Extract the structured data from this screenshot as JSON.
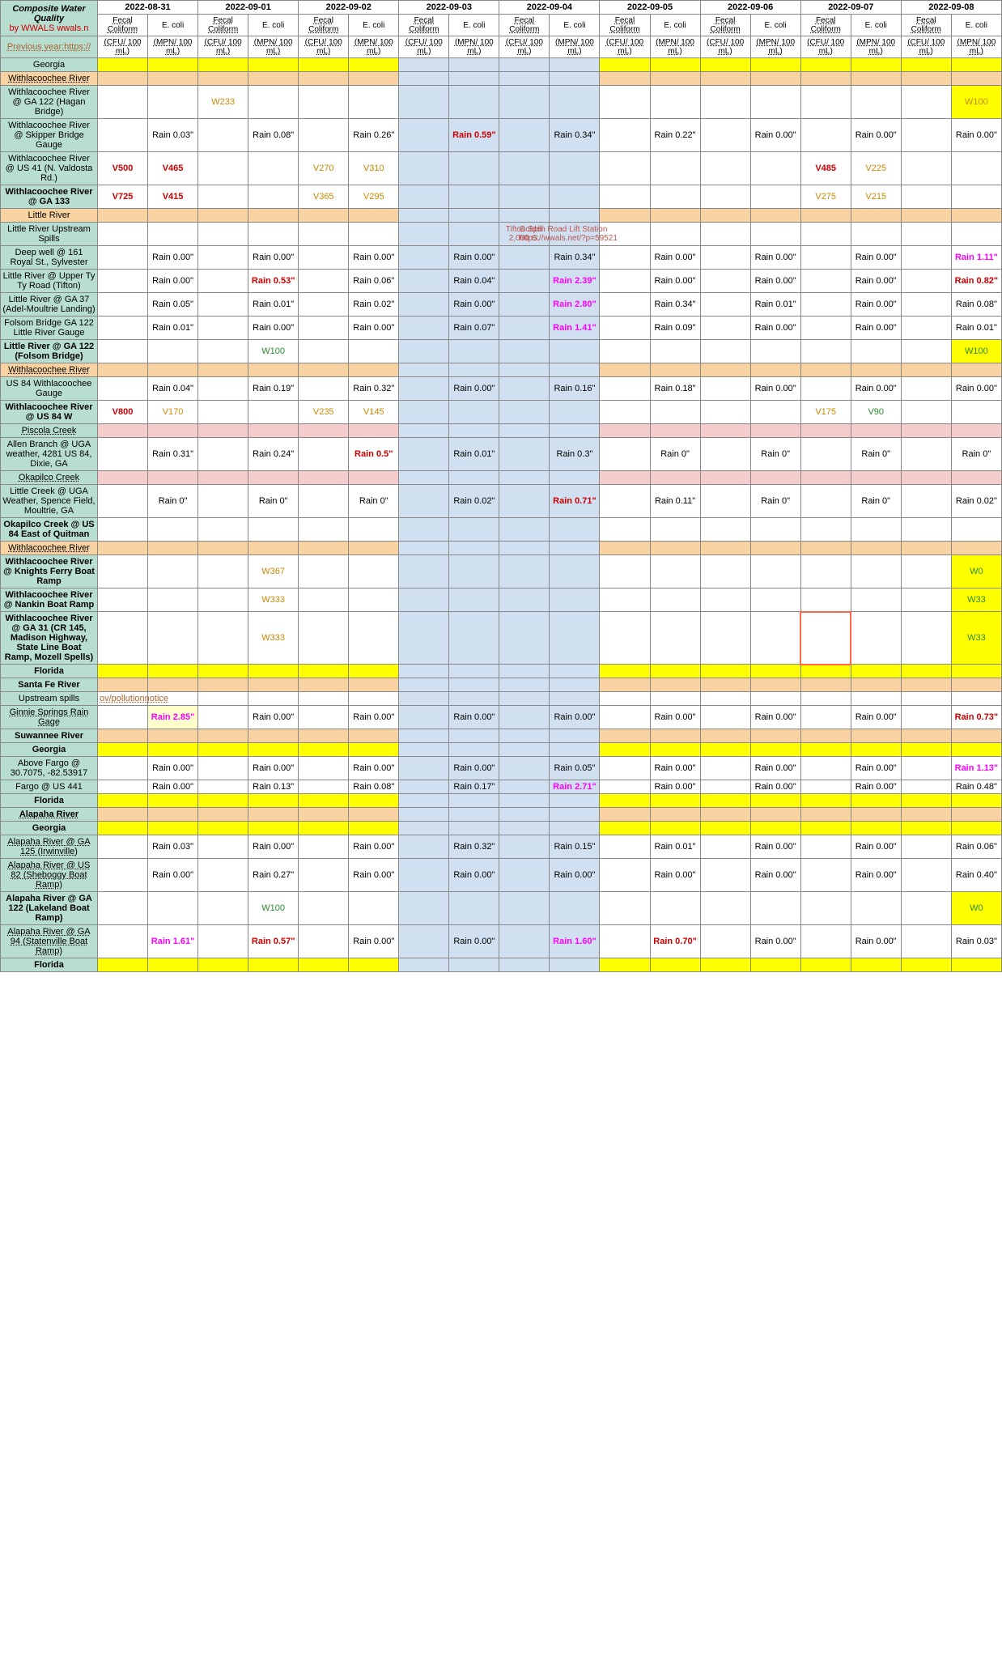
{
  "colors": {
    "teal": "#b8ddd1",
    "orange_bg": "#f9d2a1",
    "yellow": "#ffff00",
    "pink": "#f4cccc",
    "blue": "#d0e0f0",
    "red_text": "#cc0000",
    "magenta": "#ff00ff",
    "orange_text": "#cc8800",
    "green_text": "#2a8a2a",
    "brown_text": "#aa6633"
  },
  "dates": [
    "2022-08-31",
    "2022-09-01",
    "2022-09-02",
    "2022-09-03",
    "2022-09-04",
    "2022-09-05",
    "2022-09-06",
    "2022-09-07",
    "2022-09-08"
  ],
  "col_types": [
    "Fecal Coliform",
    "E. coli"
  ],
  "units": [
    "(CFU/ 100 mL)",
    "(MPN/ 100 mL)"
  ],
  "title_rows": {
    "composite": "Composite Water Quality",
    "wwals": "by WWALS wwals.n",
    "prev": "Previous year:https://"
  },
  "rows": [
    {
      "label": "Georgia",
      "bg": "teal",
      "rowbg": "yellow",
      "blues": [
        3,
        4
      ]
    },
    {
      "label": "Withlacoochee River",
      "bg": "orange",
      "rowbg": "orange",
      "dotted": true,
      "blues": [
        3,
        4
      ]
    },
    {
      "label": "Withlacoochee River @ GA 122 (Hagan Bridge)",
      "bg": "teal",
      "cells": {
        "2": {
          "t": "W233",
          "c": "orange"
        },
        "17": {
          "t": "W100",
          "c": "orange",
          "bg": "yellow"
        }
      }
    },
    {
      "label": "Withlacoochee River @ Skipper Bridge Gauge",
      "bg": "teal",
      "cells": {
        "1": {
          "t": "Rain 0.03\"",
          "c": "black"
        },
        "3": {
          "t": "Rain 0.08\"",
          "c": "black"
        },
        "5": {
          "t": "Rain 0.26\"",
          "c": "black"
        },
        "7": {
          "t": "Rain 0.59\"",
          "c": "red"
        },
        "9": {
          "t": "Rain 0.34\"",
          "c": "black"
        },
        "11": {
          "t": "Rain 0.22\"",
          "c": "black"
        },
        "13": {
          "t": "Rain 0.00\"",
          "c": "black"
        },
        "15": {
          "t": "Rain 0.00\"",
          "c": "black"
        },
        "17": {
          "t": "Rain 0.00\"",
          "c": "black"
        }
      }
    },
    {
      "label": "Withlacoochee River @ US 41 (N. Valdosta Rd.)",
      "bg": "teal",
      "cells": {
        "0": {
          "t": "V500",
          "c": "red"
        },
        "1": {
          "t": "V465",
          "c": "red"
        },
        "4": {
          "t": "V270",
          "c": "orange"
        },
        "5": {
          "t": "V310",
          "c": "orange"
        },
        "14": {
          "t": "V485",
          "c": "red"
        },
        "15": {
          "t": "V225",
          "c": "orange"
        }
      }
    },
    {
      "label": "Withlacoochee River @ GA 133",
      "bg": "teal",
      "bold": true,
      "cells": {
        "0": {
          "t": "V725",
          "c": "red"
        },
        "1": {
          "t": "V415",
          "c": "red"
        },
        "4": {
          "t": "V365",
          "c": "orange"
        },
        "5": {
          "t": "V295",
          "c": "orange"
        },
        "14": {
          "t": "V275",
          "c": "orange"
        },
        "15": {
          "t": "V215",
          "c": "orange"
        }
      }
    },
    {
      "label": "Little River",
      "bg": "orange",
      "rowbg": "orange",
      "blues": [
        3,
        4
      ]
    },
    {
      "label": "Little River Upstream Spills",
      "bg": "teal",
      "spill": true
    },
    {
      "label": "Deep well @ 161 Royal St., Sylvester",
      "bg": "teal",
      "cells": {
        "1": {
          "t": "Rain 0.00\"",
          "c": "black"
        },
        "3": {
          "t": "Rain 0.00\"",
          "c": "black"
        },
        "5": {
          "t": "Rain 0.00\"",
          "c": "black"
        },
        "7": {
          "t": "Rain 0.00\"",
          "c": "black"
        },
        "9": {
          "t": "Rain 0.34\"",
          "c": "black"
        },
        "11": {
          "t": "Rain 0.00\"",
          "c": "black"
        },
        "13": {
          "t": "Rain 0.00\"",
          "c": "black"
        },
        "15": {
          "t": "Rain 0.00\"",
          "c": "black"
        },
        "17": {
          "t": "Rain 1.11\"",
          "c": "magenta"
        }
      }
    },
    {
      "label": "Little River @ Upper Ty Ty Road (Tifton)",
      "bg": "teal",
      "cells": {
        "1": {
          "t": "Rain 0.00\"",
          "c": "black"
        },
        "3": {
          "t": "Rain 0.53\"",
          "c": "red"
        },
        "5": {
          "t": "Rain 0.06\"",
          "c": "black"
        },
        "7": {
          "t": "Rain 0.04\"",
          "c": "black"
        },
        "9": {
          "t": "Rain 2.39\"",
          "c": "magenta"
        },
        "11": {
          "t": "Rain 0.00\"",
          "c": "black"
        },
        "13": {
          "t": "Rain 0.00\"",
          "c": "black"
        },
        "15": {
          "t": "Rain 0.00\"",
          "c": "black"
        },
        "17": {
          "t": "Rain 0.82\"",
          "c": "red"
        }
      }
    },
    {
      "label": "Little River @ GA 37 (Adel-Moultrie Landing)",
      "bg": "teal",
      "cells": {
        "1": {
          "t": "Rain 0.05\"",
          "c": "black"
        },
        "3": {
          "t": "Rain 0.01\"",
          "c": "black"
        },
        "5": {
          "t": "Rain 0.02\"",
          "c": "black"
        },
        "7": {
          "t": "Rain 0.00\"",
          "c": "black"
        },
        "9": {
          "t": "Rain 2.80\"",
          "c": "magenta"
        },
        "11": {
          "t": "Rain 0.34\"",
          "c": "black"
        },
        "13": {
          "t": "Rain 0.01\"",
          "c": "black"
        },
        "15": {
          "t": "Rain 0.00\"",
          "c": "black"
        },
        "17": {
          "t": "Rain 0.08\"",
          "c": "black"
        }
      }
    },
    {
      "label": "Folsom Bridge GA 122 Little River Gauge",
      "bg": "teal",
      "cells": {
        "1": {
          "t": "Rain 0.01\"",
          "c": "black"
        },
        "3": {
          "t": "Rain 0.00\"",
          "c": "black"
        },
        "5": {
          "t": "Rain 0.00\"",
          "c": "black"
        },
        "7": {
          "t": "Rain 0.07\"",
          "c": "black"
        },
        "9": {
          "t": "Rain 1.41\"",
          "c": "magenta"
        },
        "11": {
          "t": "Rain 0.09\"",
          "c": "black"
        },
        "13": {
          "t": "Rain 0.00\"",
          "c": "black"
        },
        "15": {
          "t": "Rain 0.00\"",
          "c": "black"
        },
        "17": {
          "t": "Rain 0.01\"",
          "c": "black"
        }
      }
    },
    {
      "label": "Little River @ GA 122 (Folsom Bridge)",
      "bg": "teal",
      "bold": true,
      "cells": {
        "3": {
          "t": "W100",
          "c": "green"
        },
        "17": {
          "t": "W100",
          "c": "green",
          "bg": "yellow"
        }
      }
    },
    {
      "label": "Withlacoochee River",
      "bg": "orange",
      "rowbg": "orange",
      "dotted": true,
      "blues": [
        3,
        4
      ]
    },
    {
      "label": "US 84 Withlacoochee Gauge",
      "bg": "teal",
      "cells": {
        "1": {
          "t": "Rain 0.04\"",
          "c": "black"
        },
        "3": {
          "t": "Rain 0.19\"",
          "c": "black"
        },
        "5": {
          "t": "Rain 0.32\"",
          "c": "black"
        },
        "7": {
          "t": "Rain 0.00\"",
          "c": "black"
        },
        "9": {
          "t": "Rain 0.16\"",
          "c": "black"
        },
        "11": {
          "t": "Rain 0.18\"",
          "c": "black"
        },
        "13": {
          "t": "Rain 0.00\"",
          "c": "black"
        },
        "15": {
          "t": "Rain 0.00\"",
          "c": "black"
        },
        "17": {
          "t": "Rain 0.00\"",
          "c": "black"
        }
      }
    },
    {
      "label": "Withlacoochee River @ US 84 W",
      "bg": "teal",
      "bold": true,
      "cells": {
        "0": {
          "t": "V800",
          "c": "red"
        },
        "1": {
          "t": "V170",
          "c": "orange"
        },
        "4": {
          "t": "V235",
          "c": "orange"
        },
        "5": {
          "t": "V145",
          "c": "orange"
        },
        "14": {
          "t": "V175",
          "c": "orange"
        },
        "15": {
          "t": "V90",
          "c": "green"
        }
      }
    },
    {
      "label": "Piscola Creek",
      "bg": "teal",
      "rowbg": "pink",
      "blues": [
        3,
        4
      ],
      "dotted": true
    },
    {
      "label": "Allen  Branch @ UGA weather, 4281 US 84, Dixie, GA",
      "bg": "teal",
      "cells": {
        "1": {
          "t": "Rain 0.31\"",
          "c": "black"
        },
        "3": {
          "t": "Rain 0.24\"",
          "c": "black"
        },
        "5": {
          "t": "Rain 0.5\"",
          "c": "red"
        },
        "7": {
          "t": "Rain 0.01\"",
          "c": "black"
        },
        "9": {
          "t": "Rain 0.3\"",
          "c": "black"
        },
        "11": {
          "t": "Rain 0\"",
          "c": "black"
        },
        "13": {
          "t": "Rain 0\"",
          "c": "black"
        },
        "15": {
          "t": "Rain 0\"",
          "c": "black"
        },
        "17": {
          "t": "Rain 0\"",
          "c": "black"
        }
      }
    },
    {
      "label": "Okapilco Creek",
      "bg": "teal",
      "rowbg": "pink",
      "blues": [
        3,
        4
      ],
      "dotted": true
    },
    {
      "label": "Little Creek @ UGA Weather, Spence Field, Moultrie, GA",
      "bg": "teal",
      "cells": {
        "1": {
          "t": "Rain 0\"",
          "c": "black"
        },
        "3": {
          "t": "Rain 0\"",
          "c": "black"
        },
        "5": {
          "t": "Rain 0\"",
          "c": "black"
        },
        "7": {
          "t": "Rain 0.02\"",
          "c": "black"
        },
        "9": {
          "t": "Rain 0.71\"",
          "c": "red"
        },
        "11": {
          "t": "Rain 0.11\"",
          "c": "black"
        },
        "13": {
          "t": "Rain 0\"",
          "c": "black"
        },
        "15": {
          "t": "Rain 0\"",
          "c": "black"
        },
        "17": {
          "t": "Rain 0.02\"",
          "c": "black"
        }
      }
    },
    {
      "label": "Okapilco Creek @ US 84 East of Quitman",
      "bg": "teal",
      "bold": true
    },
    {
      "label": "Withlacoochee River",
      "bg": "orange",
      "rowbg": "orange",
      "dotted": true,
      "blues": [
        3,
        4
      ]
    },
    {
      "label": "Withlacoochee River @ Knights Ferry Boat Ramp",
      "bg": "teal",
      "bold": true,
      "cells": {
        "3": {
          "t": "W367",
          "c": "orange"
        },
        "17": {
          "t": "W0",
          "c": "green",
          "bg": "yellow"
        }
      }
    },
    {
      "label": "Withlacoochee River @ Nankin Boat Ramp",
      "bg": "teal",
      "bold": true,
      "cells": {
        "3": {
          "t": "W333",
          "c": "orange"
        },
        "17": {
          "t": "W33",
          "c": "green",
          "bg": "yellow"
        }
      }
    },
    {
      "label": "Withlacoochee River @ GA 31 (CR 145, Madison Highway, State Line Boat Ramp, Mozell Spells)",
      "bg": "teal",
      "bold": true,
      "cells": {
        "3": {
          "t": "W333",
          "c": "orange"
        },
        "14": {
          "t": "",
          "redborder": true
        },
        "17": {
          "t": "W33",
          "c": "green",
          "bg": "yellow"
        }
      }
    },
    {
      "label": "Florida",
      "bg": "teal",
      "bold": true,
      "rowbg": "yellow",
      "blues": [
        3,
        4
      ]
    },
    {
      "label": "Santa Fe River",
      "bg": "teal",
      "bold": true,
      "rowbg": "orange",
      "blues": [
        3,
        4
      ]
    },
    {
      "label": "Upstream spills",
      "bg": "teal",
      "upstream": true
    },
    {
      "label": "Ginnie Springs Rain Gage",
      "bg": "teal",
      "dotted": true,
      "cells": {
        "1": {
          "t": "Rain 2.85\"",
          "c": "magenta",
          "bg": "lightyellow"
        },
        "3": {
          "t": "Rain 0.00\"",
          "c": "black"
        },
        "5": {
          "t": "Rain 0.00\"",
          "c": "black"
        },
        "7": {
          "t": "Rain 0.00\"",
          "c": "black"
        },
        "9": {
          "t": "Rain 0.00\"",
          "c": "black"
        },
        "11": {
          "t": "Rain 0.00\"",
          "c": "black"
        },
        "13": {
          "t": "Rain 0.00\"",
          "c": "black"
        },
        "15": {
          "t": "Rain 0.00\"",
          "c": "black"
        },
        "17": {
          "t": "Rain 0.73\"",
          "c": "red"
        }
      }
    },
    {
      "label": "Suwannee River",
      "bg": "teal",
      "bold": true,
      "rowbg": "orange",
      "blues": [
        3,
        4
      ]
    },
    {
      "label": "Georgia",
      "bg": "teal",
      "bold": true,
      "rowbg": "yellow",
      "blues": [
        3,
        4
      ]
    },
    {
      "label": "Above Fargo @ 30.7075, -82.53917",
      "bg": "teal",
      "cells": {
        "1": {
          "t": "Rain 0.00\"",
          "c": "black"
        },
        "3": {
          "t": "Rain 0.00\"",
          "c": "black"
        },
        "5": {
          "t": "Rain 0.00\"",
          "c": "black"
        },
        "7": {
          "t": "Rain 0.00\"",
          "c": "black"
        },
        "9": {
          "t": "Rain 0.05\"",
          "c": "black"
        },
        "11": {
          "t": "Rain 0.00\"",
          "c": "black"
        },
        "13": {
          "t": "Rain 0.00\"",
          "c": "black"
        },
        "15": {
          "t": "Rain 0.00\"",
          "c": "black"
        },
        "17": {
          "t": "Rain 1.13\"",
          "c": "magenta"
        }
      }
    },
    {
      "label": "Fargo @ US 441",
      "bg": "teal",
      "cells": {
        "1": {
          "t": "Rain 0.00\"",
          "c": "black"
        },
        "3": {
          "t": "Rain 0.13\"",
          "c": "black"
        },
        "5": {
          "t": "Rain 0.08\"",
          "c": "black"
        },
        "7": {
          "t": "Rain 0.17\"",
          "c": "black"
        },
        "9": {
          "t": "Rain 2.71\"",
          "c": "magenta"
        },
        "11": {
          "t": "Rain 0.00\"",
          "c": "black"
        },
        "13": {
          "t": "Rain 0.00\"",
          "c": "black"
        },
        "15": {
          "t": "Rain 0.00\"",
          "c": "black"
        },
        "17": {
          "t": "Rain 0.48\"",
          "c": "black"
        }
      }
    },
    {
      "label": "Florida",
      "bg": "teal",
      "bold": true,
      "rowbg": "yellow",
      "blues": [
        3,
        4
      ]
    },
    {
      "label": "Alapaha River",
      "bg": "teal",
      "bold": true,
      "rowbg": "orange",
      "blues": [
        3,
        4
      ],
      "dotted": true
    },
    {
      "label": "Georgia",
      "bg": "teal",
      "bold": true,
      "rowbg": "yellow",
      "blues": [
        3,
        4
      ]
    },
    {
      "label": "Alapaha River @ GA 125 (Irwinville)",
      "bg": "teal",
      "dotted": true,
      "cells": {
        "1": {
          "t": "Rain 0.03\"",
          "c": "black"
        },
        "3": {
          "t": "Rain 0.00\"",
          "c": "black"
        },
        "5": {
          "t": "Rain 0.00\"",
          "c": "black"
        },
        "7": {
          "t": "Rain 0.32\"",
          "c": "black"
        },
        "9": {
          "t": "Rain 0.15\"",
          "c": "black"
        },
        "11": {
          "t": "Rain 0.01\"",
          "c": "black"
        },
        "13": {
          "t": "Rain 0.00\"",
          "c": "black"
        },
        "15": {
          "t": "Rain 0.00\"",
          "c": "black"
        },
        "17": {
          "t": "Rain 0.06\"",
          "c": "black"
        }
      }
    },
    {
      "label": "Alapaha River @ US 82 (Sheboggy Boat Ramp)",
      "bg": "teal",
      "dotted": true,
      "cells": {
        "1": {
          "t": "Rain 0.00\"",
          "c": "black"
        },
        "3": {
          "t": "Rain 0.27\"",
          "c": "black"
        },
        "5": {
          "t": "Rain 0.00\"",
          "c": "black"
        },
        "7": {
          "t": "Rain 0.00\"",
          "c": "black"
        },
        "9": {
          "t": "Rain 0.00\"",
          "c": "black"
        },
        "11": {
          "t": "Rain 0.00\"",
          "c": "black"
        },
        "13": {
          "t": "Rain 0.00\"",
          "c": "black"
        },
        "15": {
          "t": "Rain 0.00\"",
          "c": "black"
        },
        "17": {
          "t": "Rain 0.40\"",
          "c": "black"
        }
      }
    },
    {
      "label": "Alapaha River @ GA 122 (Lakeland Boat Ramp)",
      "bg": "teal",
      "bold": true,
      "cells": {
        "3": {
          "t": "W100",
          "c": "green"
        },
        "17": {
          "t": "W0",
          "c": "green",
          "bg": "yellow"
        }
      }
    },
    {
      "label": "Alapaha River @ GA 94 (Statenville Boat Ramp)",
      "bg": "teal",
      "dotted": true,
      "cells": {
        "1": {
          "t": "Rain 1.61\"",
          "c": "magenta"
        },
        "3": {
          "t": "Rain 0.57\"",
          "c": "red"
        },
        "5": {
          "t": "Rain 0.00\"",
          "c": "black"
        },
        "7": {
          "t": "Rain 0.00\"",
          "c": "black"
        },
        "9": {
          "t": "Rain 1.60\"",
          "c": "magenta"
        },
        "11": {
          "t": "Rain 0.70\"",
          "c": "red"
        },
        "13": {
          "t": "Rain 0.00\"",
          "c": "black"
        },
        "15": {
          "t": "Rain 0.00\"",
          "c": "black"
        },
        "17": {
          "t": "Rain 0.03\"",
          "c": "black"
        }
      }
    },
    {
      "label": "Florida",
      "bg": "teal",
      "bold": true,
      "rowbg": "yellow",
      "blues": [
        3,
        4
      ]
    }
  ],
  "spill_text": {
    "l1": "Tifton Spill",
    "l2": "2,000 G.",
    "l3": "Golden Road Lift Station",
    "l4": "https://wwals.net/?p=59521"
  },
  "upstream_text": "ov/pollutionnotice"
}
